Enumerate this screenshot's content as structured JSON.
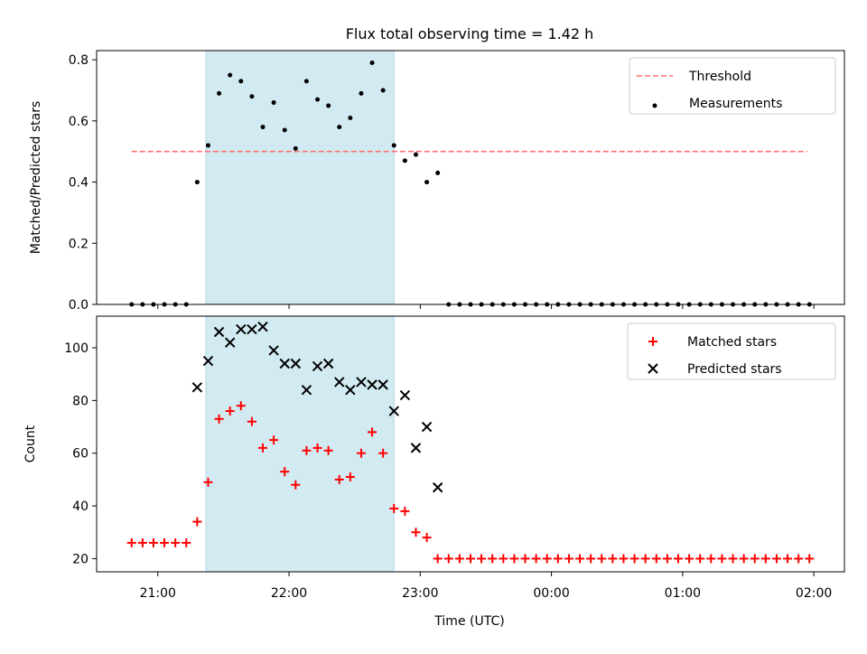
{
  "figure": {
    "title": "Flux total observing time = 1.42 h",
    "xlabel": "Time (UTC)",
    "xticks": [
      "21:00",
      "22:00",
      "23:00",
      "00:00",
      "01:00",
      "02:00"
    ],
    "colors": {
      "highlight": "#add8e6",
      "threshold": "#ff7070",
      "measurements": "#000000",
      "matched": "#ff0000",
      "predicted": "#000000"
    }
  },
  "chart_data": [
    {
      "type": "scatter",
      "ylabel": "Matched/Predicted stars",
      "ylim": [
        0,
        0.83
      ],
      "yticks": [
        "0.0",
        "0.2",
        "0.4",
        "0.6",
        "0.8"
      ],
      "xlim": [
        "20:32",
        "02:14"
      ],
      "highlight_span": [
        "21:22",
        "22:48"
      ],
      "legend": {
        "placement": "top-right",
        "entries": [
          "Threshold",
          "Measurements"
        ]
      },
      "threshold": {
        "name": "Threshold",
        "y": 0.5,
        "x_range": [
          "20:48",
          "01:57"
        ]
      },
      "series": [
        {
          "name": "Measurements",
          "x": [
            "20:48",
            "20:53",
            "20:58",
            "21:03",
            "21:08",
            "21:13",
            "21:18",
            "21:23",
            "21:28",
            "21:33",
            "21:38",
            "21:43",
            "21:48",
            "21:53",
            "21:58",
            "22:03",
            "22:08",
            "22:13",
            "22:18",
            "22:23",
            "22:28",
            "22:33",
            "22:38",
            "22:43",
            "22:48",
            "22:53",
            "22:58",
            "23:03",
            "23:08",
            "23:13",
            "23:18",
            "23:23",
            "23:28",
            "23:33",
            "23:38",
            "23:43",
            "23:48",
            "23:53",
            "23:58",
            "00:03",
            "00:08",
            "00:13",
            "00:18",
            "00:23",
            "00:28",
            "00:33",
            "00:38",
            "00:43",
            "00:48",
            "00:53",
            "00:58",
            "01:03",
            "01:08",
            "01:13",
            "01:18",
            "01:23",
            "01:28",
            "01:33",
            "01:38",
            "01:43",
            "01:48",
            "01:53",
            "01:58"
          ],
          "y": [
            0,
            0,
            0,
            0,
            0,
            0,
            0.4,
            0.52,
            0.69,
            0.75,
            0.73,
            0.68,
            0.58,
            0.66,
            0.57,
            0.51,
            0.73,
            0.67,
            0.65,
            0.58,
            0.61,
            0.69,
            0.79,
            0.7,
            0.52,
            0.47,
            0.49,
            0.4,
            0.43,
            0,
            0,
            0,
            0,
            0,
            0,
            0,
            0,
            0,
            0,
            0,
            0,
            0,
            0,
            0,
            0,
            0,
            0,
            0,
            0,
            0,
            0,
            0,
            0,
            0,
            0,
            0,
            0,
            0,
            0,
            0,
            0,
            0,
            0
          ]
        }
      ]
    },
    {
      "type": "scatter",
      "ylabel": "Count",
      "ylim": [
        15,
        112
      ],
      "yticks": [
        "20",
        "40",
        "60",
        "80",
        "100"
      ],
      "xlim": [
        "20:32",
        "02:14"
      ],
      "highlight_span": [
        "21:22",
        "22:48"
      ],
      "legend": {
        "placement": "top-right",
        "entries": [
          "Matched stars",
          "Predicted stars"
        ]
      },
      "series": [
        {
          "name": "Matched stars",
          "marker": "plus",
          "x": [
            "20:48",
            "20:53",
            "20:58",
            "21:03",
            "21:08",
            "21:13",
            "21:18",
            "21:23",
            "21:28",
            "21:33",
            "21:38",
            "21:43",
            "21:48",
            "21:53",
            "21:58",
            "22:03",
            "22:08",
            "22:13",
            "22:18",
            "22:23",
            "22:28",
            "22:33",
            "22:38",
            "22:43",
            "22:48",
            "22:53",
            "22:58",
            "23:03",
            "23:08",
            "23:13",
            "23:18",
            "23:23",
            "23:28",
            "23:33",
            "23:38",
            "23:43",
            "23:48",
            "23:53",
            "23:58",
            "00:03",
            "00:08",
            "00:13",
            "00:18",
            "00:23",
            "00:28",
            "00:33",
            "00:38",
            "00:43",
            "00:48",
            "00:53",
            "00:58",
            "01:03",
            "01:08",
            "01:13",
            "01:18",
            "01:23",
            "01:28",
            "01:33",
            "01:38",
            "01:43",
            "01:48",
            "01:53",
            "01:58"
          ],
          "y": [
            26,
            26,
            26,
            26,
            26,
            26,
            34,
            49,
            73,
            76,
            78,
            72,
            62,
            65,
            53,
            48,
            61,
            62,
            61,
            50,
            51,
            60,
            68,
            60,
            39,
            38,
            30,
            28,
            20,
            20,
            20,
            20,
            20,
            20,
            20,
            20,
            20,
            20,
            20,
            20,
            20,
            20,
            20,
            20,
            20,
            20,
            20,
            20,
            20,
            20,
            20,
            20,
            20,
            20,
            20,
            20,
            20,
            20,
            20,
            20,
            20,
            20,
            20
          ]
        },
        {
          "name": "Predicted stars",
          "marker": "x",
          "x": [
            "21:18",
            "21:23",
            "21:28",
            "21:33",
            "21:38",
            "21:43",
            "21:48",
            "21:53",
            "21:58",
            "22:03",
            "22:08",
            "22:13",
            "22:18",
            "22:23",
            "22:28",
            "22:33",
            "22:38",
            "22:43",
            "22:48",
            "22:53",
            "22:58",
            "23:03",
            "23:08"
          ],
          "y": [
            85,
            95,
            106,
            102,
            107,
            107,
            108,
            99,
            94,
            94,
            84,
            93,
            94,
            87,
            84,
            87,
            86,
            86,
            76,
            82,
            62,
            70,
            47
          ]
        }
      ]
    }
  ]
}
